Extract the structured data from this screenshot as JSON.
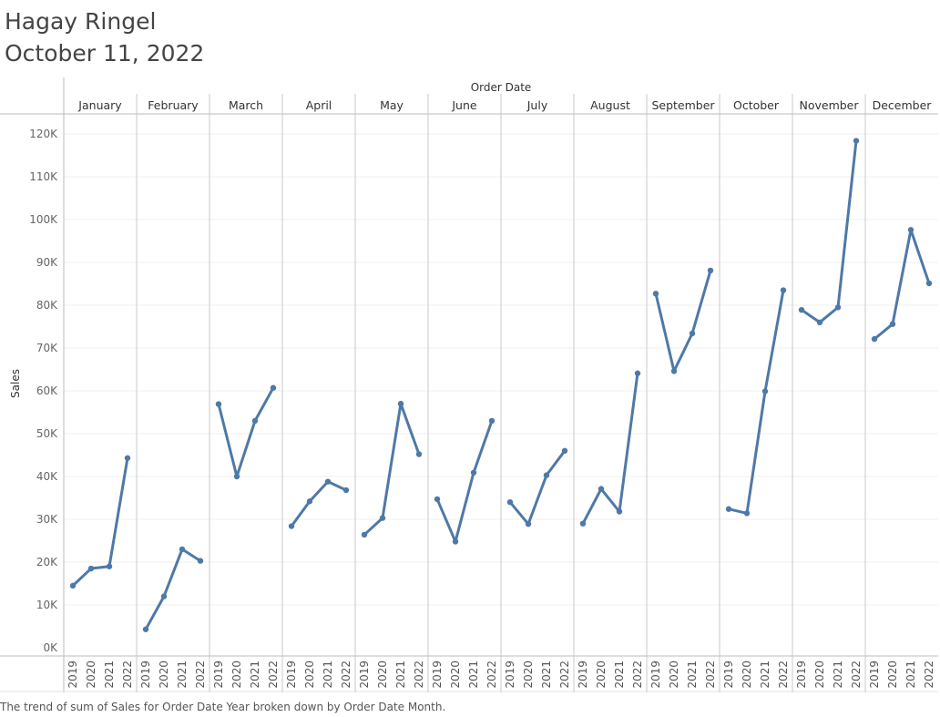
{
  "header": {
    "author": "Hagay Ringel",
    "date": "October 11, 2022"
  },
  "caption": "The trend of sum of Sales for Order Date Year broken down by Order Date Month.",
  "colors": {
    "line": "#4e79a7",
    "gridline": "#efefef",
    "divider": "#c8c8c8",
    "axis": "#bbbbbb"
  },
  "chart_data": {
    "type": "line",
    "top_axis_title": "Order Date",
    "ylabel": "Sales",
    "ylim": [
      0,
      120000
    ],
    "y_ticks": [
      {
        "value": 0,
        "label": "0K"
      },
      {
        "value": 10000,
        "label": "10K"
      },
      {
        "value": 20000,
        "label": "20K"
      },
      {
        "value": 30000,
        "label": "30K"
      },
      {
        "value": 40000,
        "label": "40K"
      },
      {
        "value": 50000,
        "label": "50K"
      },
      {
        "value": 60000,
        "label": "60K"
      },
      {
        "value": 70000,
        "label": "70K"
      },
      {
        "value": 80000,
        "label": "80K"
      },
      {
        "value": 90000,
        "label": "90K"
      },
      {
        "value": 100000,
        "label": "100K"
      },
      {
        "value": 110000,
        "label": "110K"
      },
      {
        "value": 120000,
        "label": "120K"
      }
    ],
    "years": [
      "2019",
      "2020",
      "2021",
      "2022"
    ],
    "grid": true,
    "panels": [
      {
        "month": "January",
        "values": [
          14500,
          18500,
          19000,
          44300
        ]
      },
      {
        "month": "February",
        "values": [
          4300,
          12000,
          23000,
          20300
        ]
      },
      {
        "month": "March",
        "values": [
          56900,
          40000,
          53000,
          60700
        ]
      },
      {
        "month": "April",
        "values": [
          28400,
          34200,
          38800,
          36800
        ]
      },
      {
        "month": "May",
        "values": [
          26400,
          30300,
          57000,
          45200
        ]
      },
      {
        "month": "June",
        "values": [
          34700,
          24800,
          40900,
          53000
        ]
      },
      {
        "month": "July",
        "values": [
          34000,
          28900,
          40300,
          46000
        ]
      },
      {
        "month": "August",
        "values": [
          29000,
          37100,
          31800,
          64100
        ]
      },
      {
        "month": "September",
        "values": [
          82700,
          64600,
          73400,
          88100
        ]
      },
      {
        "month": "October",
        "values": [
          32400,
          31400,
          59900,
          83500
        ]
      },
      {
        "month": "November",
        "values": [
          78900,
          76000,
          79500,
          118400
        ]
      },
      {
        "month": "December",
        "values": [
          72100,
          75600,
          97600,
          85100
        ]
      }
    ]
  }
}
